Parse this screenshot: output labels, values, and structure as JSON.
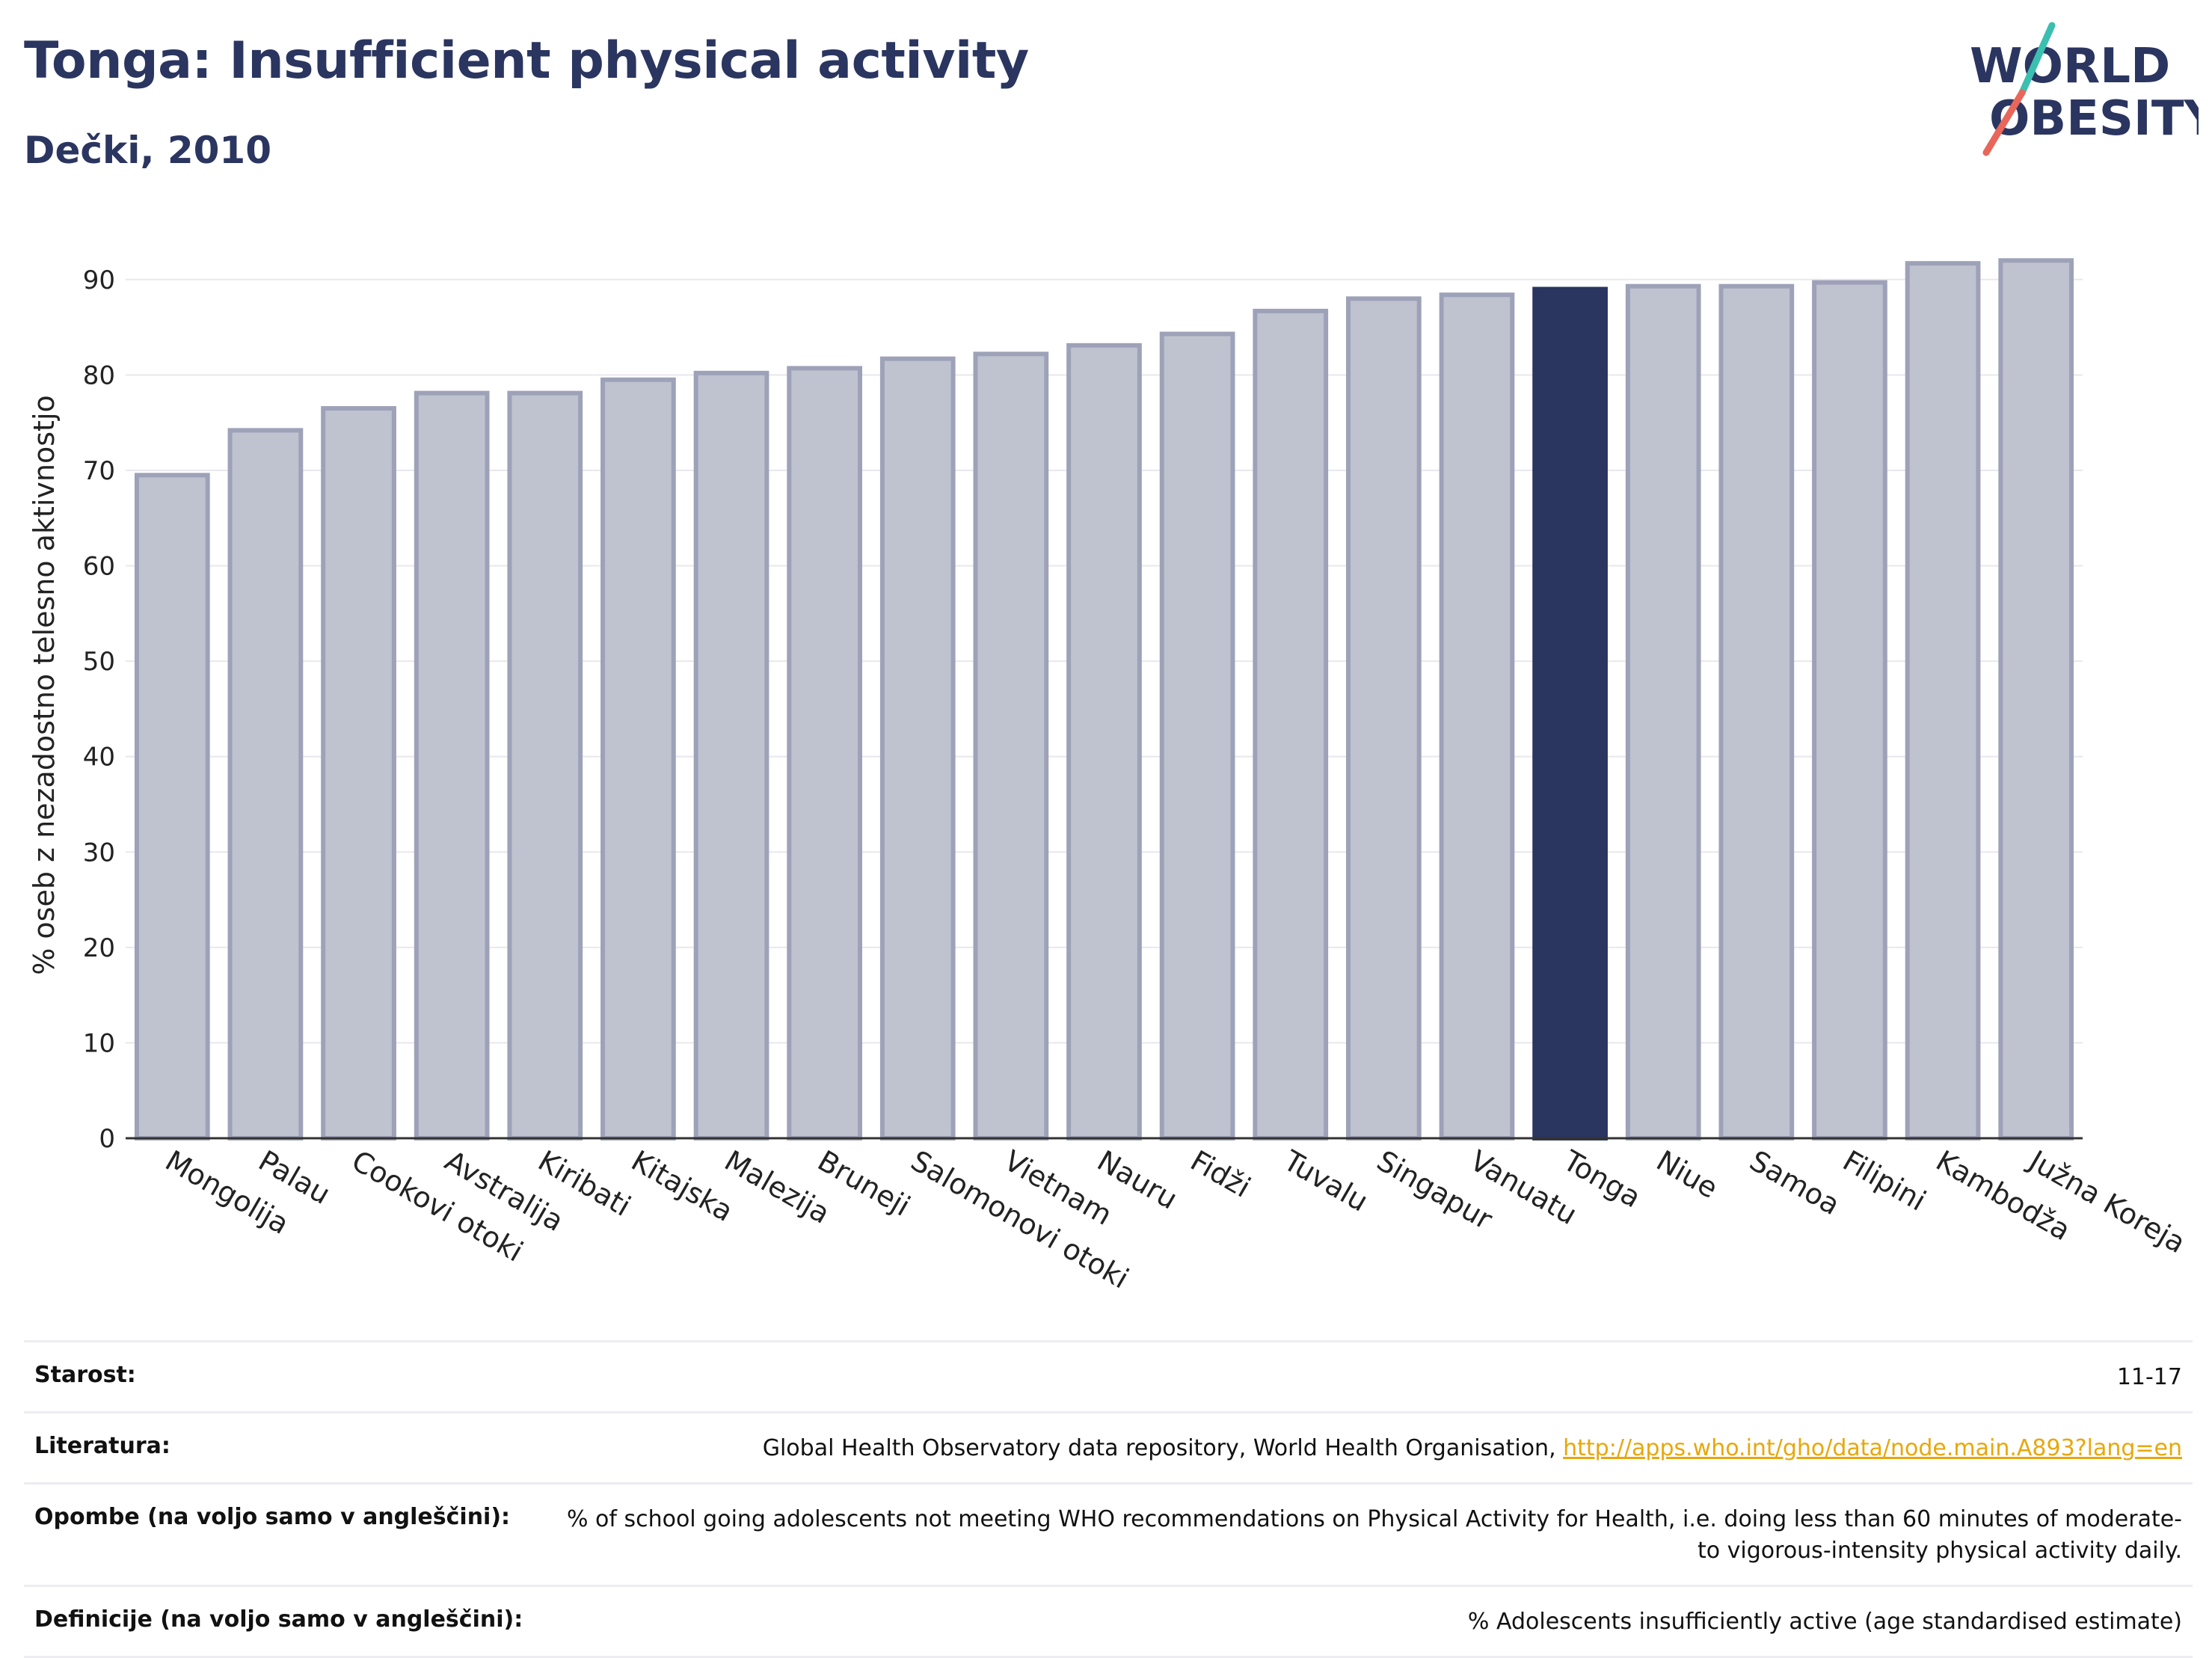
{
  "header": {
    "title": "Tonga: Insufficient physical activity",
    "subtitle": "Dečki, 2010"
  },
  "logo": {
    "line1": "WORLD",
    "line2": "OBESITY",
    "text_color": "#2a3560",
    "slash_top_color": "#3bbfb0",
    "slash_bottom_color": "#e8665a"
  },
  "colors": {
    "bar_fill": "#bfc2cf",
    "bar_stroke": "#9ea2b8",
    "highlight": "#2a3560",
    "grid": "#e8e8ee",
    "axis": "#333333"
  },
  "chart_data": {
    "type": "bar",
    "ylabel": "% oseb z nezadostno telesno aktivnostjo",
    "ylim": [
      0,
      95
    ],
    "yticks": [
      0,
      10,
      20,
      30,
      40,
      50,
      60,
      70,
      80,
      90
    ],
    "grid": true,
    "highlight": "Tonga",
    "categories": [
      "Mongolija",
      "Palau",
      "Cookovi otoki",
      "Avstralija",
      "Kiribati",
      "Kitajska",
      "Malezija",
      "Bruneji",
      "Salomonovi otoki",
      "Vietnam",
      "Nauru",
      "Fidži",
      "Tuvalu",
      "Singapur",
      "Vanuatu",
      "Tonga",
      "Niue",
      "Samoa",
      "Filipini",
      "Kambodža",
      "Južna Koreja"
    ],
    "values": [
      69.5,
      74.2,
      76.5,
      78.1,
      78.1,
      79.5,
      80.2,
      80.7,
      81.7,
      82.2,
      83.1,
      84.3,
      86.7,
      88.0,
      88.4,
      89.0,
      89.3,
      89.3,
      89.7,
      91.7,
      92.0
    ]
  },
  "meta": {
    "rows": [
      {
        "label": "Starost:",
        "value": "11-17"
      },
      {
        "label": "Literatura:",
        "value": "Global Health Observatory data repository, World Health Organisation, ",
        "link": "http://apps.who.int/gho/data/node.main.A893?lang=en"
      },
      {
        "label": "Opombe (na voljo samo v angleščini):",
        "value": "% of school going adolescents not meeting WHO recommendations on Physical Activity for Health, i.e. doing less than 60 minutes of moderate- to vigorous-intensity physical activity daily."
      },
      {
        "label": "Definicije (na voljo samo v angleščini):",
        "value": "% Adolescents insufficiently active (age standardised estimate)"
      }
    ]
  }
}
